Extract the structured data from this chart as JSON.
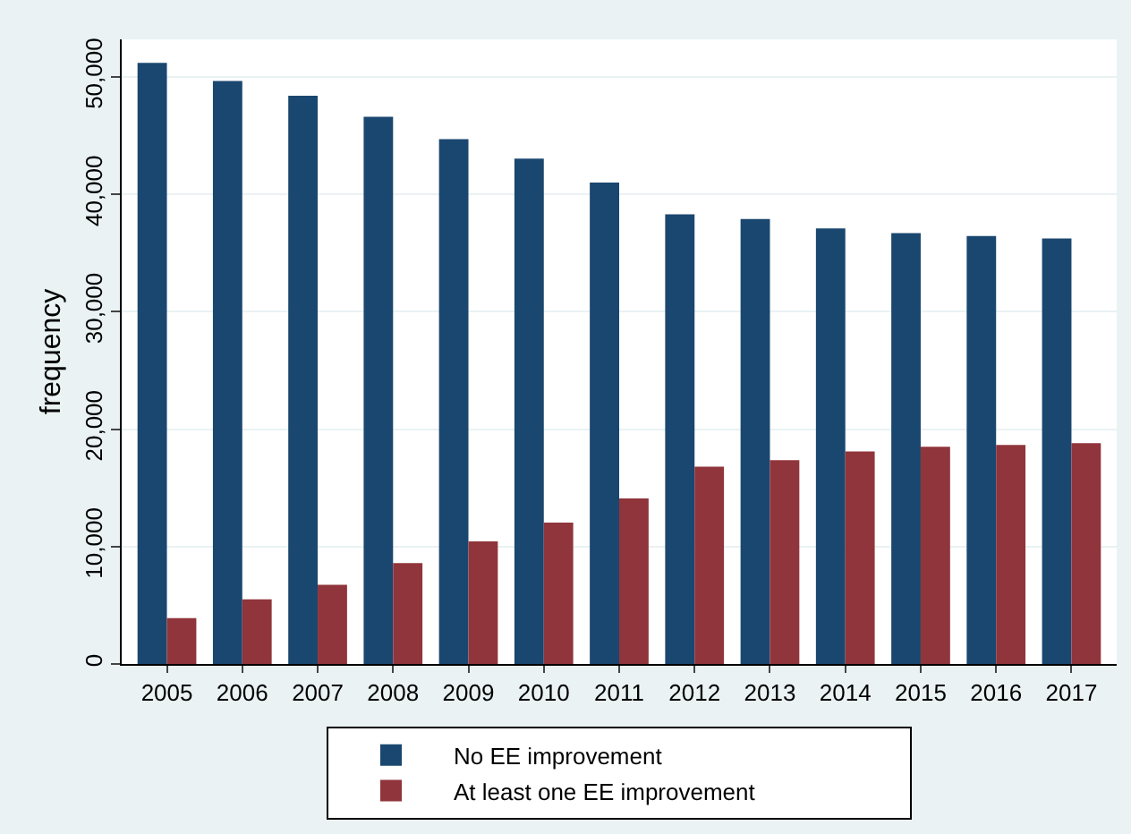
{
  "chart_data": {
    "type": "bar",
    "ylabel": "frequency",
    "categories": [
      "2005",
      "2006",
      "2007",
      "2008",
      "2009",
      "2010",
      "2011",
      "2012",
      "2013",
      "2014",
      "2015",
      "2016",
      "2017"
    ],
    "series": [
      {
        "name": "No EE improvement",
        "color": "#1a476f",
        "values": [
          51200,
          49650,
          48400,
          46600,
          44700,
          43050,
          41000,
          38300,
          37900,
          37100,
          36700,
          36450,
          36250
        ]
      },
      {
        "name": "At least one EE improvement",
        "color": "#90353b",
        "values": [
          3900,
          5500,
          6750,
          8600,
          10450,
          12050,
          14100,
          16800,
          17350,
          18100,
          18500,
          18650,
          18800
        ]
      }
    ],
    "ylim": [
      0,
      53200
    ],
    "yticks": [
      {
        "value": 0,
        "label": "0"
      },
      {
        "value": 10000,
        "label": "10,000"
      },
      {
        "value": 20000,
        "label": "20,000"
      },
      {
        "value": 30000,
        "label": "30,000"
      },
      {
        "value": 40000,
        "label": "40,000"
      },
      {
        "value": 50000,
        "label": "50,000"
      }
    ],
    "grid": "y",
    "legend": "bottom"
  }
}
